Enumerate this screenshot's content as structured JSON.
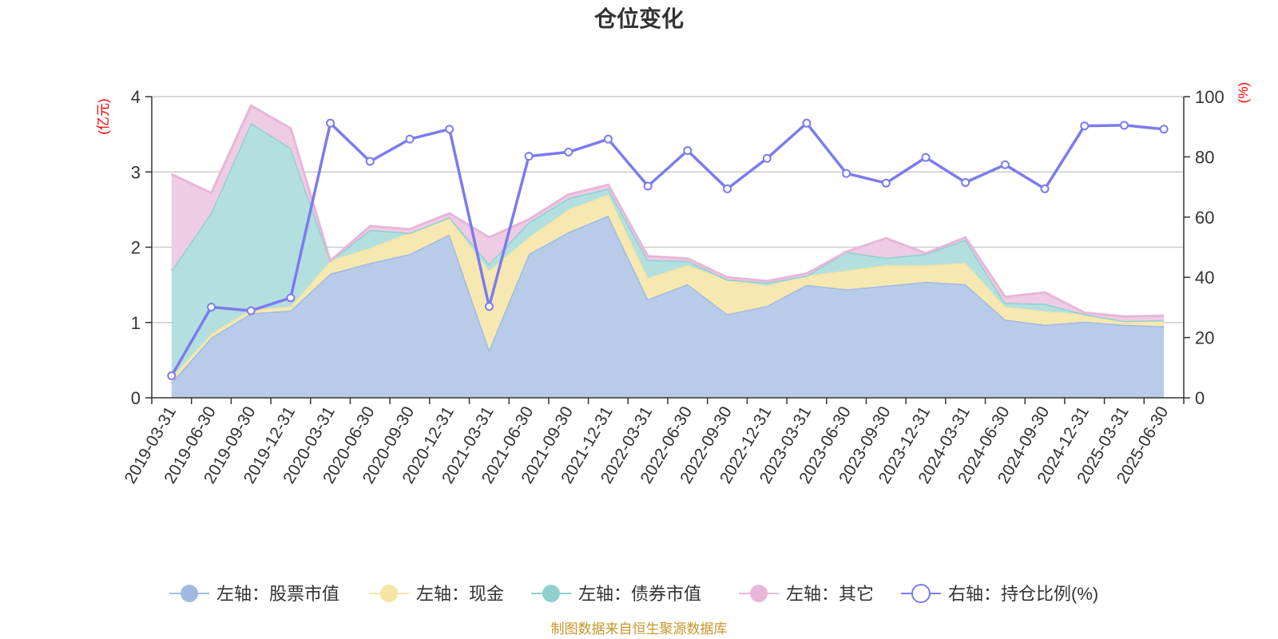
{
  "chart_data": {
    "type": "area",
    "title": "仓位变化",
    "left_unit": "(亿元)",
    "right_unit": "(%)",
    "source_note": "制图数据来自恒生聚源数据库",
    "left_axis": {
      "min": 0,
      "max": 4,
      "ticks": [
        0,
        1,
        2,
        3,
        4
      ]
    },
    "right_axis": {
      "min": 0,
      "max": 100,
      "ticks": [
        0,
        20,
        40,
        60,
        80,
        100
      ]
    },
    "grid": true,
    "legend_position": "bottom",
    "x": [
      "2019-03-31",
      "2019-06-30",
      "2019-09-30",
      "2019-12-31",
      "2020-03-31",
      "2020-06-30",
      "2020-09-30",
      "2020-12-31",
      "2021-03-31",
      "2021-06-30",
      "2021-09-30",
      "2021-12-31",
      "2022-03-31",
      "2022-06-30",
      "2022-09-30",
      "2022-12-31",
      "2023-03-31",
      "2023-06-30",
      "2023-09-30",
      "2023-12-31",
      "2024-03-31",
      "2024-06-30",
      "2024-09-30",
      "2024-12-31",
      "2025-03-31",
      "2025-06-30"
    ],
    "series": [
      {
        "name": "左轴：股票市值",
        "axis": "left",
        "kind": "stacked-area",
        "color": "#9fbbe2",
        "fill": "#b8cce9",
        "values": [
          0.2,
          0.8,
          1.12,
          1.16,
          1.65,
          1.79,
          1.91,
          2.17,
          0.64,
          1.91,
          2.2,
          2.42,
          1.31,
          1.51,
          1.11,
          1.22,
          1.5,
          1.44,
          1.49,
          1.54,
          1.51,
          1.04,
          0.97,
          1.01,
          0.97,
          0.95
        ]
      },
      {
        "name": "左轴：现金",
        "axis": "left",
        "kind": "stacked-area",
        "color": "#f5e5a3",
        "fill": "#f7e8b1",
        "values": [
          0.07,
          0.05,
          0.05,
          0.05,
          0.17,
          0.2,
          0.28,
          0.21,
          1.05,
          0.22,
          0.3,
          0.28,
          0.28,
          0.25,
          0.46,
          0.27,
          0.12,
          0.25,
          0.27,
          0.22,
          0.28,
          0.17,
          0.18,
          0.1,
          0.05,
          0.08
        ]
      },
      {
        "name": "左轴：债券市值",
        "axis": "left",
        "kind": "stacked-area",
        "color": "#8fd0cf",
        "fill": "#b3e0df",
        "values": [
          1.42,
          1.61,
          2.48,
          2.11,
          0,
          0.24,
          0,
          0.02,
          0.09,
          0.2,
          0.15,
          0.08,
          0.24,
          0.06,
          0,
          0.04,
          0,
          0.25,
          0.1,
          0.15,
          0.31,
          0.05,
          0.1,
          0,
          0,
          0
        ]
      },
      {
        "name": "左轴：其它",
        "axis": "left",
        "kind": "stacked-area",
        "color": "#e8b6d9",
        "fill": "#eecce4",
        "values": [
          1.28,
          0.26,
          0.23,
          0.26,
          0,
          0.05,
          0.05,
          0.05,
          0.35,
          0.04,
          0.05,
          0.05,
          0.05,
          0.03,
          0.03,
          0.02,
          0.03,
          0,
          0.26,
          0.01,
          0.03,
          0.08,
          0.15,
          0.02,
          0.06,
          0.06
        ]
      },
      {
        "name": "右轴：持仓比例(%)",
        "axis": "right",
        "kind": "line",
        "color": "#7b7bef",
        "values": [
          7.3,
          30.1,
          28.9,
          33.2,
          91.2,
          78.5,
          85.9,
          89.2,
          30.3,
          80.2,
          81.6,
          85.9,
          70.3,
          82.1,
          69.4,
          79.5,
          91.2,
          74.5,
          71.3,
          79.8,
          71.5,
          77.4,
          69.4,
          90.3,
          90.5,
          89.2
        ]
      }
    ]
  }
}
